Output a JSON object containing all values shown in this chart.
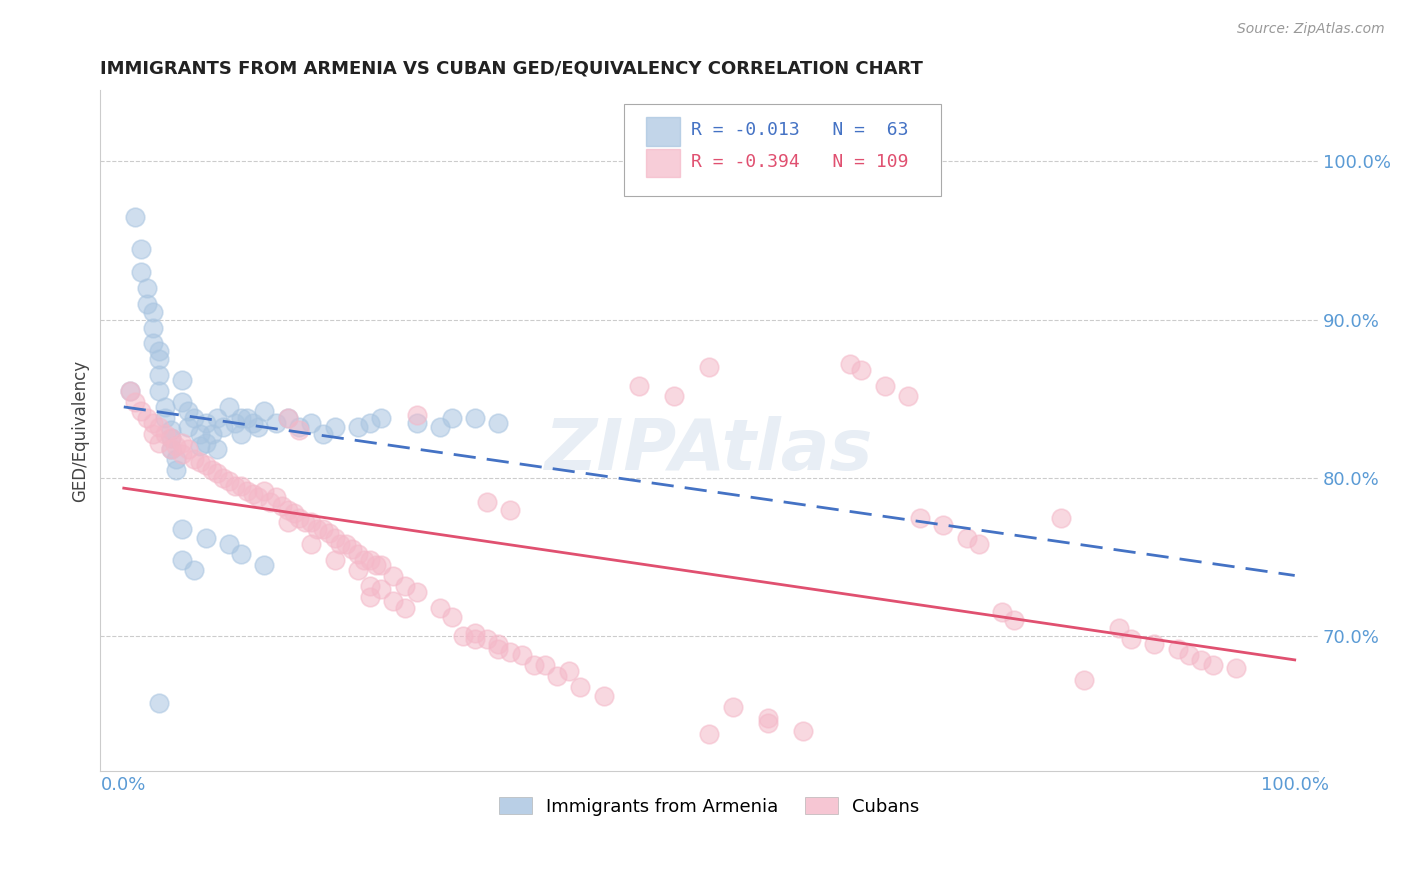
{
  "title": "IMMIGRANTS FROM ARMENIA VS CUBAN GED/EQUIVALENCY CORRELATION CHART",
  "source": "Source: ZipAtlas.com",
  "ylabel": "GED/Equivalency",
  "legend_armenia": "Immigrants from Armenia",
  "legend_cubans": "Cubans",
  "armenia_R": -0.013,
  "armenia_N": 63,
  "cuban_R": -0.394,
  "cuban_N": 109,
  "ymin": 0.615,
  "ymax": 1.045,
  "xmin": -0.02,
  "xmax": 1.02,
  "background_color": "#ffffff",
  "grid_color": "#cccccc",
  "armenia_color": "#a8c4e0",
  "cuban_color": "#f4b8c8",
  "armenia_line_color": "#4472c4",
  "cuban_line_color": "#e05070",
  "right_axis_color": "#5b9bd5",
  "watermark_color": "#e8eef5",
  "armenia_x": [
    0.005,
    0.01,
    0.015,
    0.015,
    0.02,
    0.02,
    0.025,
    0.025,
    0.025,
    0.03,
    0.03,
    0.03,
    0.03,
    0.035,
    0.035,
    0.04,
    0.04,
    0.04,
    0.045,
    0.045,
    0.05,
    0.05,
    0.055,
    0.055,
    0.06,
    0.065,
    0.065,
    0.07,
    0.07,
    0.075,
    0.08,
    0.08,
    0.085,
    0.09,
    0.095,
    0.1,
    0.1,
    0.105,
    0.11,
    0.115,
    0.12,
    0.13,
    0.14,
    0.15,
    0.16,
    0.17,
    0.18,
    0.2,
    0.21,
    0.22,
    0.25,
    0.27,
    0.28,
    0.3,
    0.32,
    0.05,
    0.07,
    0.09,
    0.1,
    0.12,
    0.05,
    0.06,
    0.03
  ],
  "armenia_y": [
    0.855,
    0.965,
    0.945,
    0.93,
    0.92,
    0.91,
    0.905,
    0.895,
    0.885,
    0.88,
    0.875,
    0.865,
    0.855,
    0.845,
    0.838,
    0.83,
    0.825,
    0.818,
    0.812,
    0.805,
    0.862,
    0.848,
    0.842,
    0.832,
    0.838,
    0.828,
    0.82,
    0.835,
    0.822,
    0.828,
    0.838,
    0.818,
    0.832,
    0.845,
    0.835,
    0.838,
    0.828,
    0.838,
    0.835,
    0.832,
    0.842,
    0.835,
    0.838,
    0.832,
    0.835,
    0.828,
    0.832,
    0.832,
    0.835,
    0.838,
    0.835,
    0.832,
    0.838,
    0.838,
    0.835,
    0.768,
    0.762,
    0.758,
    0.752,
    0.745,
    0.748,
    0.742,
    0.658
  ],
  "cuban_x": [
    0.005,
    0.01,
    0.015,
    0.02,
    0.025,
    0.025,
    0.03,
    0.03,
    0.035,
    0.04,
    0.04,
    0.045,
    0.05,
    0.05,
    0.055,
    0.06,
    0.065,
    0.07,
    0.075,
    0.08,
    0.085,
    0.09,
    0.095,
    0.1,
    0.105,
    0.11,
    0.115,
    0.12,
    0.125,
    0.13,
    0.135,
    0.14,
    0.145,
    0.15,
    0.155,
    0.16,
    0.165,
    0.17,
    0.175,
    0.18,
    0.185,
    0.19,
    0.195,
    0.2,
    0.205,
    0.21,
    0.215,
    0.22,
    0.23,
    0.24,
    0.25,
    0.27,
    0.28,
    0.3,
    0.31,
    0.32,
    0.33,
    0.35,
    0.37,
    0.39,
    0.41,
    0.44,
    0.47,
    0.5,
    0.52,
    0.55,
    0.55,
    0.58,
    0.62,
    0.63,
    0.65,
    0.67,
    0.68,
    0.7,
    0.72,
    0.73,
    0.75,
    0.76,
    0.8,
    0.82,
    0.85,
    0.86,
    0.88,
    0.9,
    0.91,
    0.92,
    0.93,
    0.95,
    0.5,
    0.14,
    0.15,
    0.25,
    0.29,
    0.14,
    0.24,
    0.2,
    0.21,
    0.21,
    0.22,
    0.23,
    0.16,
    0.18,
    0.3,
    0.32,
    0.31,
    0.33,
    0.34,
    0.36,
    0.38
  ],
  "cuban_y": [
    0.855,
    0.848,
    0.842,
    0.838,
    0.835,
    0.828,
    0.832,
    0.822,
    0.828,
    0.825,
    0.818,
    0.82,
    0.822,
    0.815,
    0.818,
    0.812,
    0.81,
    0.808,
    0.805,
    0.803,
    0.8,
    0.798,
    0.795,
    0.795,
    0.792,
    0.79,
    0.788,
    0.792,
    0.785,
    0.788,
    0.782,
    0.78,
    0.778,
    0.775,
    0.772,
    0.772,
    0.768,
    0.768,
    0.765,
    0.762,
    0.758,
    0.758,
    0.755,
    0.752,
    0.748,
    0.748,
    0.745,
    0.745,
    0.738,
    0.732,
    0.728,
    0.718,
    0.712,
    0.702,
    0.698,
    0.695,
    0.69,
    0.682,
    0.675,
    0.668,
    0.662,
    0.858,
    0.852,
    0.87,
    0.655,
    0.648,
    0.645,
    0.64,
    0.872,
    0.868,
    0.858,
    0.852,
    0.775,
    0.77,
    0.762,
    0.758,
    0.715,
    0.71,
    0.775,
    0.672,
    0.705,
    0.698,
    0.695,
    0.692,
    0.688,
    0.685,
    0.682,
    0.68,
    0.638,
    0.838,
    0.83,
    0.84,
    0.7,
    0.772,
    0.718,
    0.742,
    0.732,
    0.725,
    0.73,
    0.722,
    0.758,
    0.748,
    0.698,
    0.692,
    0.785,
    0.78,
    0.688,
    0.682,
    0.678
  ]
}
